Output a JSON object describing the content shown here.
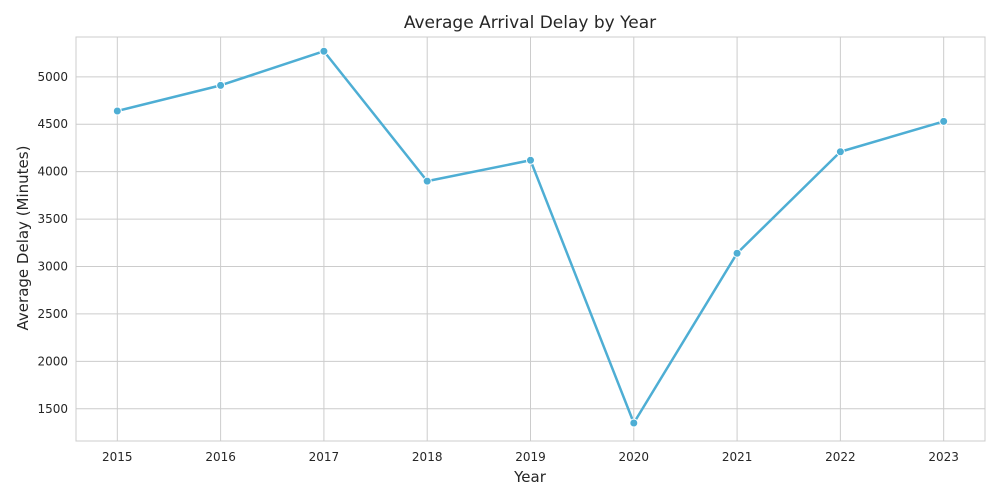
{
  "chart_data": {
    "type": "line",
    "title": "Average Arrival Delay by Year",
    "xlabel": "Year",
    "ylabel": "Average Delay (Minutes)",
    "x": [
      2015,
      2016,
      2017,
      2018,
      2019,
      2020,
      2021,
      2022,
      2023
    ],
    "series": [
      {
        "values": [
          4640,
          4910,
          5270,
          3900,
          4120,
          1350,
          3140,
          4210,
          4530
        ]
      }
    ],
    "xlim": [
      2014.6,
      2023.4
    ],
    "ylim": [
      1160,
      5420
    ],
    "yticks": [
      1500,
      2000,
      2500,
      3000,
      3500,
      4000,
      4500,
      5000
    ],
    "grid": true,
    "line_color": "#4eaed4",
    "marker": "circle"
  }
}
